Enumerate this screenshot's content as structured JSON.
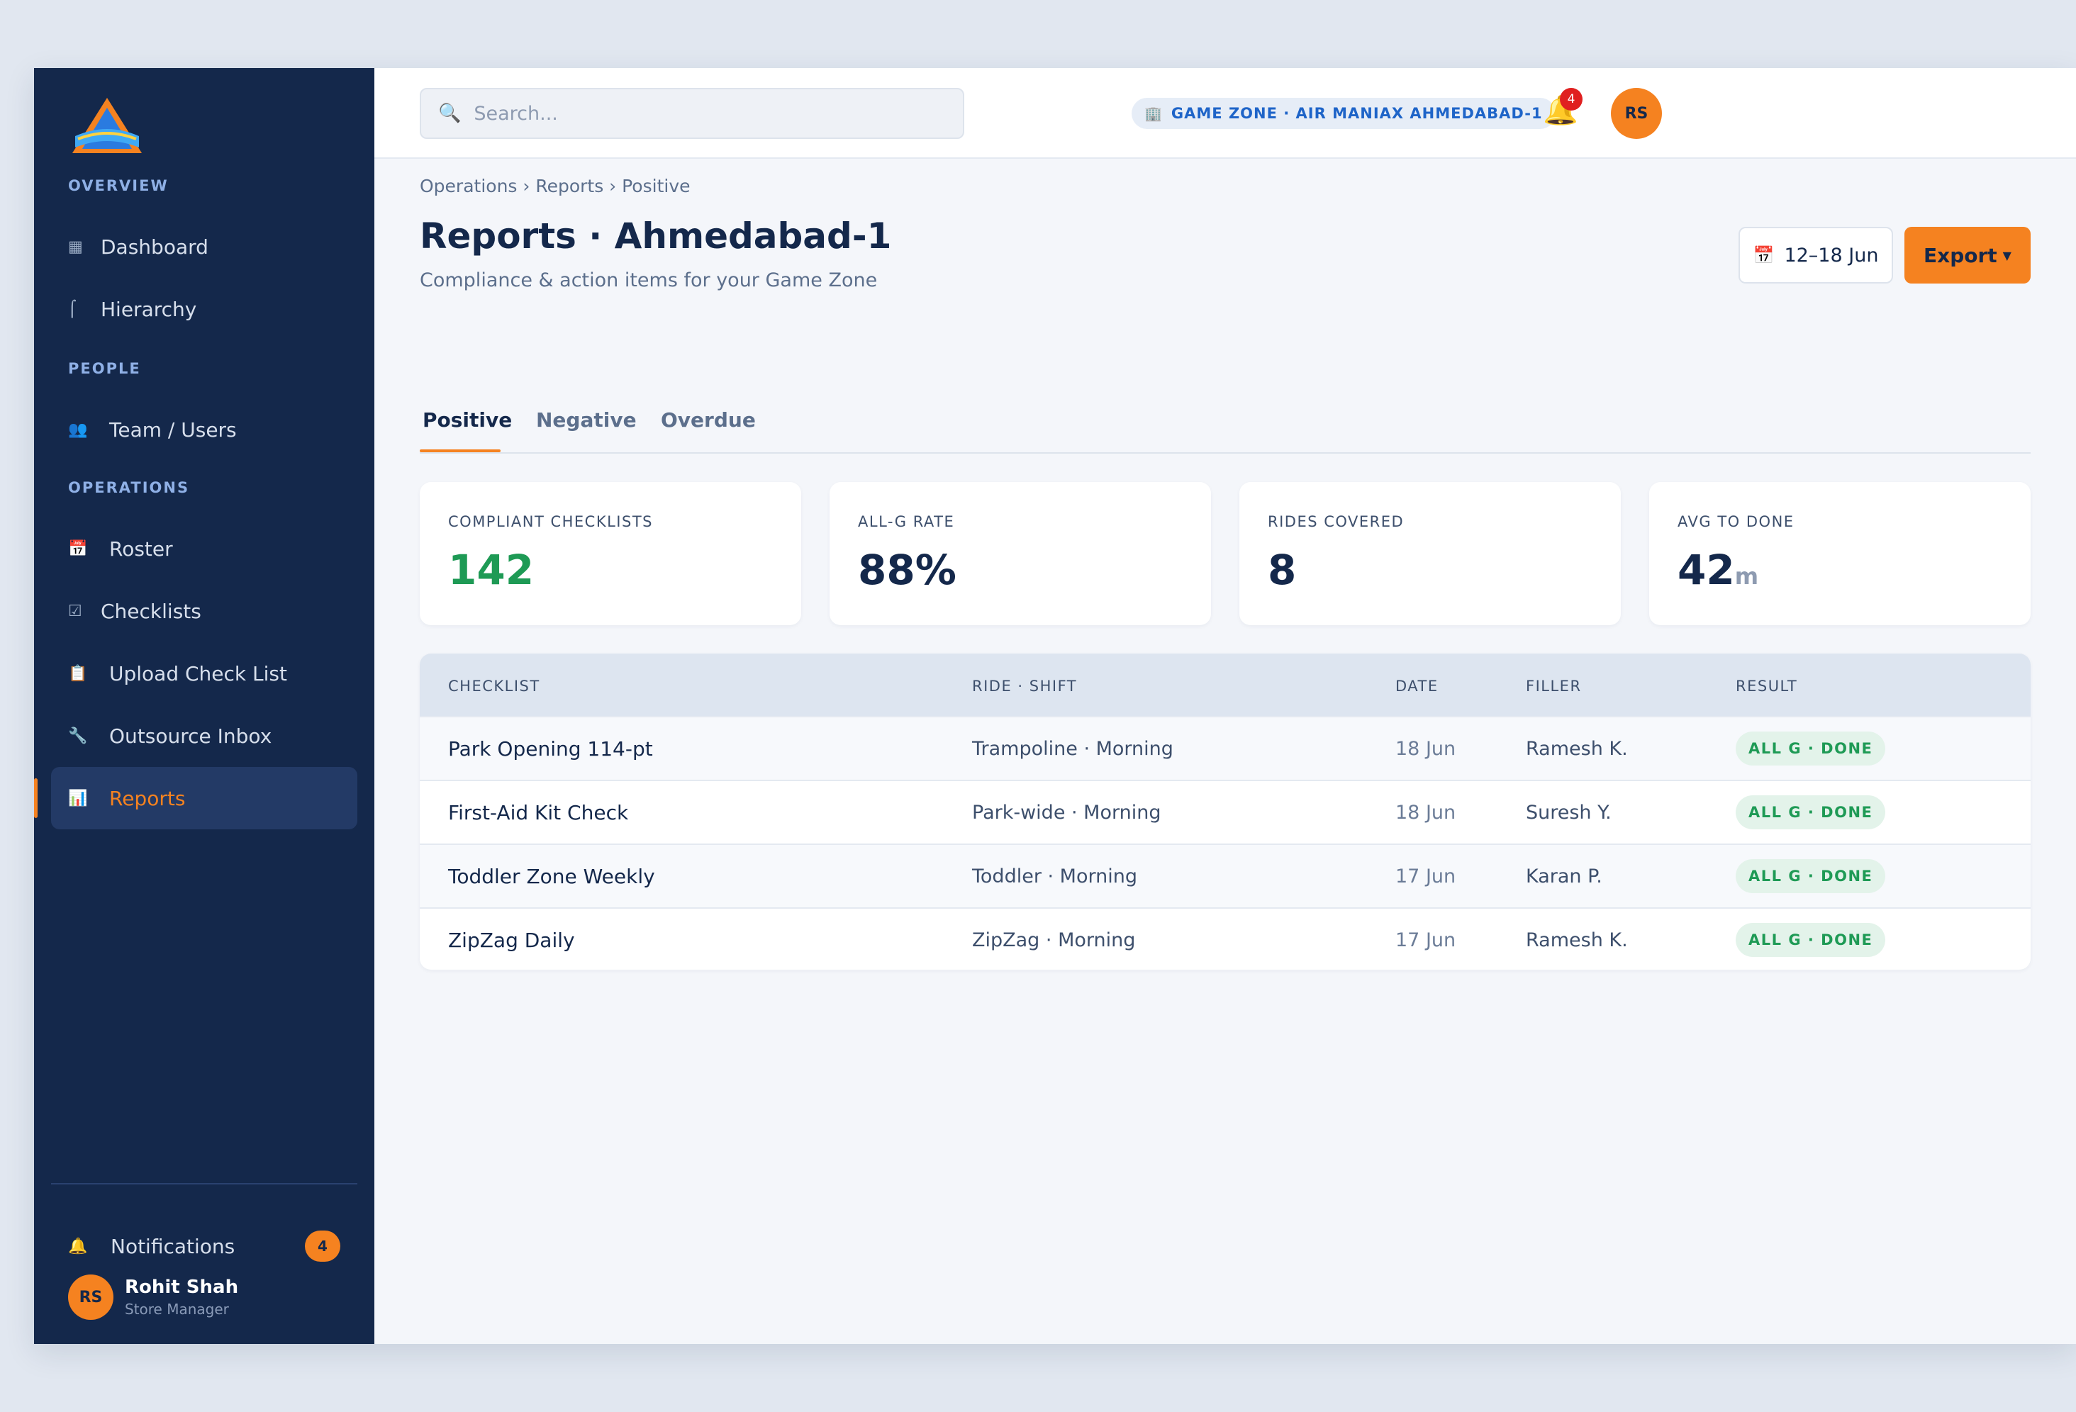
{
  "app": {
    "logo_alt": "Air Maniax"
  },
  "sidebar": {
    "sections": {
      "overview": "OVERVIEW",
      "people": "PEOPLE",
      "operations": "OPERATIONS"
    },
    "items": [
      {
        "label": "Dashboard",
        "icon": "grid-icon"
      },
      {
        "label": "Hierarchy",
        "icon": "hierarchy-icon"
      },
      {
        "label": "Team / Users",
        "icon": "users-icon"
      },
      {
        "label": "Roster",
        "icon": "calendar-icon"
      },
      {
        "label": "Checklists",
        "icon": "checkbox-icon"
      },
      {
        "label": "Upload Check List",
        "icon": "clipboard-icon"
      },
      {
        "label": "Outsource Inbox",
        "icon": "wrench-icon"
      },
      {
        "label": "Reports",
        "icon": "bar-chart-icon"
      }
    ],
    "notifications": {
      "label": "Notifications",
      "count": "4"
    },
    "user": {
      "initials": "RS",
      "name": "Rohit Shah",
      "role": "Store Manager"
    }
  },
  "topbar": {
    "search_placeholder": "Search...",
    "zone": "GAME ZONE · AIR MANIAX AHMEDABAD-1",
    "bell_count": "4",
    "avatar_initials": "RS"
  },
  "page": {
    "breadcrumb": "Operations › Reports › Positive",
    "title": "Reports · Ahmedabad-1",
    "subtitle": "Compliance & action items for your Game Zone",
    "date_range": "12–18 Jun",
    "export_label": "Export"
  },
  "tabs": [
    "Positive",
    "Negative",
    "Overdue"
  ],
  "kpis": [
    {
      "label": "COMPLIANT CHECKLISTS",
      "value": "142",
      "unit": ""
    },
    {
      "label": "ALL-G RATE",
      "value": "88%",
      "unit": ""
    },
    {
      "label": "RIDES COVERED",
      "value": "8",
      "unit": ""
    },
    {
      "label": "AVG TO DONE",
      "value": "42",
      "unit": "m"
    }
  ],
  "table": {
    "headers": [
      "CHECKLIST",
      "RIDE · SHIFT",
      "DATE",
      "FILLER",
      "RESULT"
    ],
    "rows": [
      [
        "Park Opening 114-pt",
        "Trampoline · Morning",
        "18 Jun",
        "Ramesh K.",
        "ALL G · DONE"
      ],
      [
        "First-Aid Kit Check",
        "Park-wide · Morning",
        "18 Jun",
        "Suresh Y.",
        "ALL G · DONE"
      ],
      [
        "Toddler Zone Weekly",
        "Toddler · Morning",
        "17 Jun",
        "Karan P.",
        "ALL G · DONE"
      ],
      [
        "ZipZag Daily",
        "ZipZag · Morning",
        "17 Jun",
        "Ramesh K.",
        "ALL G · DONE"
      ]
    ]
  },
  "colors": {
    "accent": "#f58220",
    "sidebar": "#14284b",
    "success": "#1e9a55"
  }
}
